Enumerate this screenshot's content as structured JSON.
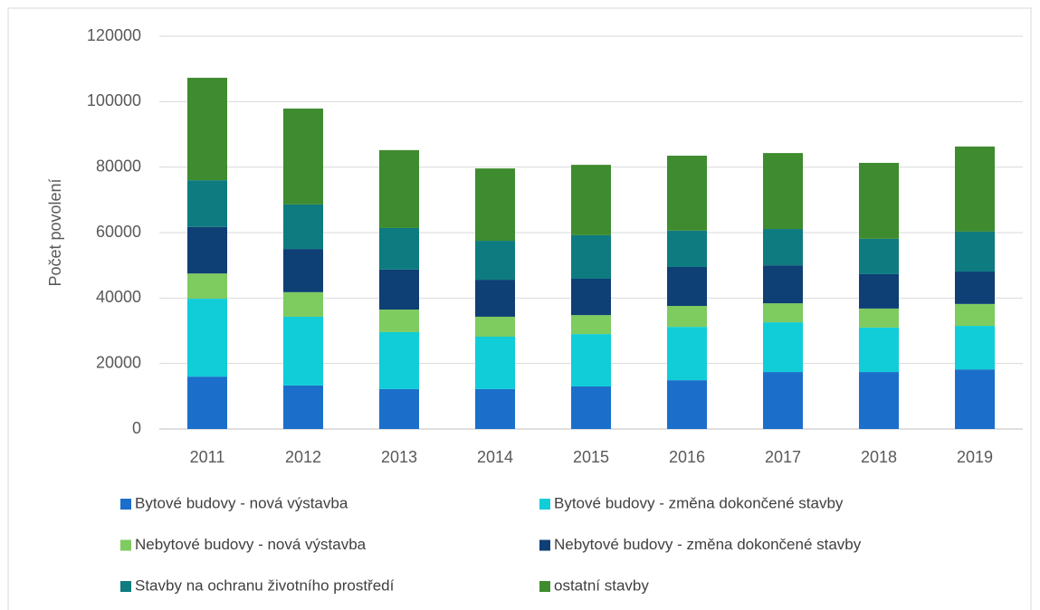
{
  "chart_data": {
    "type": "stacked_bar",
    "y_label": "Počet povolení",
    "categories": [
      "2011",
      "2012",
      "2013",
      "2014",
      "2015",
      "2016",
      "2017",
      "2018",
      "2019"
    ],
    "series": [
      {
        "name": "Bytové budovy - nová výstavba",
        "color": "#1b6fcb",
        "values": [
          16000,
          13300,
          12200,
          12200,
          13000,
          14900,
          17400,
          17400,
          18200
        ]
      },
      {
        "name": "Bytové budovy - změna dokončené stavby",
        "color": "#10cdd8",
        "values": [
          23800,
          21000,
          17400,
          16000,
          16000,
          16300,
          15200,
          13600,
          13300
        ]
      },
      {
        "name": "Nebytové budovy - nová výstavba",
        "color": "#7ecb5f",
        "values": [
          7700,
          7500,
          6900,
          6100,
          5800,
          6400,
          5800,
          5800,
          6700
        ]
      },
      {
        "name": "Nebytové budovy - změna dokončené stavby",
        "color": "#0e3f75",
        "values": [
          14200,
          13200,
          12200,
          11300,
          11100,
          11900,
          11600,
          10500,
          9900
        ]
      },
      {
        "name": "Stavby na ochranu životního prostředí",
        "color": "#0e7b80",
        "values": [
          14300,
          13600,
          12700,
          11900,
          13300,
          11100,
          11100,
          10800,
          12200
        ]
      },
      {
        "name": "ostatní stavby",
        "color": "#3f8b2f",
        "values": [
          31300,
          29300,
          23800,
          22100,
          21500,
          22900,
          23200,
          23200,
          26000
        ]
      }
    ],
    "ylim": [
      0,
      120000
    ],
    "yticks": [
      0,
      20000,
      40000,
      60000,
      80000,
      100000,
      120000
    ],
    "grid": true,
    "legend": "bottom"
  }
}
